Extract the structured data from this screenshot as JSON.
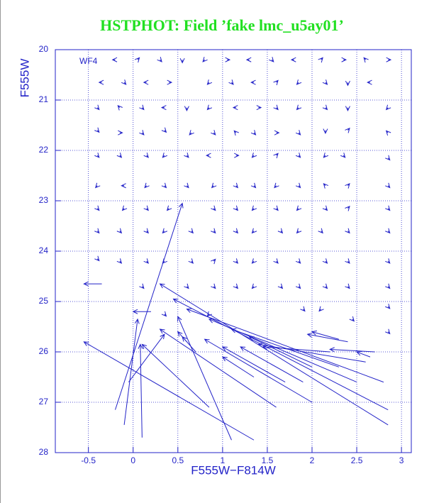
{
  "chart_data": {
    "type": "quiver",
    "title": "HSTPHOT: Field ’fake lmc_u5ay01’",
    "annotation": "WF4",
    "x_label": "F555W−F814W",
    "y_label": "F555W",
    "color": "#2323c8",
    "grid": true,
    "xlim": [
      -0.87,
      3.11
    ],
    "ylim": [
      28,
      20
    ],
    "xticks": [
      -0.5,
      0,
      0.5,
      1,
      1.5,
      2,
      2.5,
      3
    ],
    "yticks": [
      20,
      21,
      22,
      23,
      24,
      25,
      26,
      27,
      28
    ],
    "vectors": [
      [
        -0.2,
        20.2,
        -0.03,
        0
      ],
      [
        0.05,
        20.2,
        0.02,
        -0.04
      ],
      [
        0.3,
        20.2,
        0.02,
        0.04
      ],
      [
        0.55,
        20.2,
        0,
        0.06
      ],
      [
        0.8,
        20.2,
        -0.02,
        0.04
      ],
      [
        1.05,
        20.2,
        0.03,
        0
      ],
      [
        1.3,
        20.2,
        -0.03,
        0
      ],
      [
        1.55,
        20.2,
        0.02,
        0.04
      ],
      [
        1.8,
        20.2,
        -0.03,
        0
      ],
      [
        2.1,
        20.2,
        0.02,
        -0.04
      ],
      [
        2.35,
        20.2,
        0.03,
        0
      ],
      [
        2.6,
        20.2,
        -0.02,
        -0.04
      ],
      [
        2.85,
        20.2,
        0.03,
        0
      ],
      [
        -0.35,
        20.65,
        -0.03,
        0
      ],
      [
        -0.1,
        20.65,
        0.02,
        0.04
      ],
      [
        0.15,
        20.65,
        -0.03,
        0
      ],
      [
        0.4,
        20.65,
        0.03,
        0
      ],
      [
        0.85,
        20.65,
        -0.02,
        0.04
      ],
      [
        1.1,
        20.65,
        0.02,
        0.04
      ],
      [
        1.35,
        20.65,
        -0.03,
        0
      ],
      [
        1.6,
        20.65,
        0.02,
        -0.04
      ],
      [
        1.85,
        20.65,
        -0.02,
        0.04
      ],
      [
        2.15,
        20.65,
        0.02,
        0.04
      ],
      [
        2.4,
        20.65,
        0,
        0.06
      ],
      [
        2.65,
        20.65,
        -0.03,
        0
      ],
      [
        -0.4,
        21.15,
        0.02,
        0.04
      ],
      [
        -0.15,
        21.15,
        -0.02,
        -0.04
      ],
      [
        0.1,
        21.15,
        0.02,
        0.04
      ],
      [
        0.35,
        21.15,
        -0.03,
        0
      ],
      [
        0.6,
        21.15,
        0,
        0.06
      ],
      [
        0.85,
        21.15,
        -0.02,
        0.04
      ],
      [
        1.15,
        21.15,
        -0.03,
        0
      ],
      [
        1.4,
        21.15,
        0.03,
        0
      ],
      [
        1.6,
        21.15,
        0.02,
        0.04
      ],
      [
        1.85,
        21.15,
        -0.02,
        0.04
      ],
      [
        2.15,
        21.15,
        0.02,
        0.04
      ],
      [
        2.4,
        21.15,
        0,
        0.06
      ],
      [
        2.85,
        21.15,
        -0.02,
        0.04
      ],
      [
        -0.4,
        21.6,
        0.02,
        0.04
      ],
      [
        -0.15,
        21.65,
        0.03,
        0
      ],
      [
        0.1,
        21.65,
        0.02,
        0.04
      ],
      [
        0.35,
        21.6,
        0.02,
        0.04
      ],
      [
        0.65,
        21.65,
        -0.02,
        0.04
      ],
      [
        0.9,
        21.65,
        0.02,
        0.04
      ],
      [
        1.15,
        21.65,
        -0.02,
        -0.04
      ],
      [
        1.35,
        21.65,
        0.02,
        0.04
      ],
      [
        1.6,
        21.65,
        0.03,
        0
      ],
      [
        1.85,
        21.65,
        0.02,
        0.04
      ],
      [
        2.15,
        21.6,
        0,
        0.06
      ],
      [
        2.4,
        21.6,
        0.02,
        -0.04
      ],
      [
        2.85,
        21.65,
        -0.02,
        -0.04
      ],
      [
        -0.4,
        22.1,
        0.02,
        0.04
      ],
      [
        -0.15,
        22.1,
        0.02,
        0.04
      ],
      [
        0.15,
        22.1,
        0.02,
        0.04
      ],
      [
        0.35,
        22.1,
        -0.02,
        0.04
      ],
      [
        0.6,
        22.1,
        0.02,
        0.04
      ],
      [
        0.85,
        22.1,
        -0.03,
        0
      ],
      [
        1.15,
        22.1,
        0.03,
        0
      ],
      [
        1.35,
        22.1,
        -0.02,
        0.04
      ],
      [
        1.6,
        22.1,
        0.02,
        -0.04
      ],
      [
        1.85,
        22.1,
        0.02,
        0.04
      ],
      [
        2.15,
        22.1,
        -0.02,
        0.04
      ],
      [
        2.35,
        22.1,
        0.02,
        0.04
      ],
      [
        2.85,
        22.15,
        0.02,
        0.04
      ],
      [
        -0.4,
        22.7,
        -0.02,
        0.04
      ],
      [
        -0.1,
        22.7,
        -0.03,
        0
      ],
      [
        0.15,
        22.7,
        -0.02,
        0.04
      ],
      [
        0.35,
        22.7,
        0.02,
        0.04
      ],
      [
        0.6,
        22.7,
        0.02,
        0.04
      ],
      [
        0.9,
        22.7,
        -0.02,
        0.04
      ],
      [
        1.15,
        22.7,
        0.02,
        0.04
      ],
      [
        1.35,
        22.7,
        0.02,
        0.04
      ],
      [
        1.6,
        22.7,
        -0.02,
        0.04
      ],
      [
        1.85,
        22.7,
        0.02,
        0.04
      ],
      [
        2.15,
        22.7,
        -0.02,
        -0.04
      ],
      [
        2.4,
        22.7,
        0.02,
        -0.04
      ],
      [
        2.85,
        22.7,
        0.02,
        0.04
      ],
      [
        -0.4,
        23.15,
        0.02,
        0.04
      ],
      [
        -0.1,
        23.15,
        -0.02,
        0.04
      ],
      [
        0.15,
        23.15,
        0.02,
        0.04
      ],
      [
        0.4,
        23.15,
        -0.02,
        0.04
      ],
      [
        0.9,
        23.15,
        0.02,
        0.04
      ],
      [
        1.15,
        23.15,
        0.02,
        0.04
      ],
      [
        1.35,
        23.15,
        -0.02,
        0.04
      ],
      [
        1.6,
        23.15,
        0.02,
        0.04
      ],
      [
        1.85,
        23.15,
        -0.02,
        0.04
      ],
      [
        2.15,
        23.15,
        0.02,
        0.04
      ],
      [
        2.4,
        23.15,
        0.02,
        -0.04
      ],
      [
        2.85,
        23.15,
        0.02,
        0.04
      ],
      [
        -0.4,
        23.6,
        0.02,
        0.04
      ],
      [
        -0.15,
        23.6,
        0.02,
        0.04
      ],
      [
        0.15,
        23.6,
        0.02,
        0.04
      ],
      [
        0.35,
        23.6,
        -0.02,
        0.04
      ],
      [
        0.65,
        23.6,
        0.02,
        0.04
      ],
      [
        0.9,
        23.6,
        0.02,
        0.04
      ],
      [
        1.15,
        23.6,
        0.02,
        0.04
      ],
      [
        1.35,
        23.6,
        -0.02,
        0.04
      ],
      [
        1.65,
        23.6,
        0.02,
        0.04
      ],
      [
        1.85,
        23.6,
        -0.02,
        0.04
      ],
      [
        2.1,
        23.6,
        0.02,
        0.04
      ],
      [
        2.4,
        23.6,
        0.02,
        0.04
      ],
      [
        2.85,
        23.6,
        0.02,
        0.04
      ],
      [
        -0.4,
        24.15,
        0.02,
        0.04
      ],
      [
        -0.15,
        24.2,
        0.02,
        0.04
      ],
      [
        0.15,
        24.2,
        0.02,
        0.04
      ],
      [
        0.35,
        24.2,
        -0.02,
        0.04
      ],
      [
        0.65,
        24.2,
        0.02,
        0.04
      ],
      [
        0.9,
        24.2,
        0.02,
        -0.04
      ],
      [
        1.15,
        24.2,
        0.02,
        0.04
      ],
      [
        1.35,
        24.2,
        -0.02,
        0.04
      ],
      [
        1.6,
        24.2,
        0.02,
        0.04
      ],
      [
        1.85,
        24.2,
        0.02,
        0.04
      ],
      [
        2.15,
        24.2,
        0.02,
        0.04
      ],
      [
        2.4,
        24.2,
        0.02,
        0.04
      ],
      [
        2.85,
        24.2,
        0.02,
        0.04
      ],
      [
        0.1,
        24.7,
        0.02,
        0.04
      ],
      [
        0.6,
        24.7,
        0.02,
        0.04
      ],
      [
        0.9,
        24.7,
        0.02,
        0.04
      ],
      [
        1.15,
        24.7,
        0.02,
        0.04
      ],
      [
        1.35,
        24.7,
        -0.02,
        0.04
      ],
      [
        1.65,
        24.7,
        0.02,
        0.04
      ],
      [
        1.85,
        24.7,
        0.02,
        0.04
      ],
      [
        2.15,
        24.7,
        0.02,
        0.04
      ],
      [
        2.4,
        24.7,
        0.02,
        0.04
      ],
      [
        2.85,
        24.7,
        0.02,
        0.04
      ],
      [
        1.9,
        25.15,
        0.02,
        0.04
      ],
      [
        2.1,
        25.15,
        -0.02,
        0.04
      ],
      [
        2.85,
        25.1,
        0.02,
        0.04
      ],
      [
        0.35,
        25.25,
        0.02,
        0.04
      ],
      [
        0.85,
        25.25,
        -0.02,
        0.04
      ],
      [
        2.45,
        25.35,
        0.02,
        0.04
      ],
      [
        2.85,
        25.6,
        0.02,
        0.04
      ],
      [
        -0.2,
        27.15,
        0.75,
        -4.1
      ],
      [
        -0.1,
        27.45,
        0.15,
        -2.1
      ],
      [
        0.1,
        27.7,
        -0.02,
        -1.85
      ],
      [
        1.35,
        27.75,
        -1.9,
        -1.95
      ],
      [
        1.1,
        27.75,
        -0.6,
        -2.45
      ],
      [
        0.85,
        27.1,
        -0.75,
        -1.25
      ],
      [
        1.6,
        27.1,
        -1.3,
        -1.55
      ],
      [
        -0.05,
        26.6,
        0.4,
        -0.95
      ],
      [
        0.2,
        25.2,
        -0.2,
        0
      ],
      [
        -0.35,
        24.65,
        -0.2,
        0
      ],
      [
        2.85,
        27.45,
        -2.55,
        -2.8
      ],
      [
        2.85,
        27.15,
        -2.4,
        -2.2
      ],
      [
        2.8,
        26.6,
        -2.2,
        -1.45
      ],
      [
        2.5,
        26.6,
        -1.65,
        -1.25
      ],
      [
        2.3,
        26.3,
        -1.2,
        -0.75
      ],
      [
        2.0,
        27.0,
        -1.2,
        -1.25
      ],
      [
        1.9,
        26.6,
        -0.7,
        -0.7
      ],
      [
        1.7,
        26.6,
        -0.7,
        -0.7
      ],
      [
        2.0,
        26.3,
        -0.7,
        -0.6
      ],
      [
        1.35,
        26.5,
        -0.35,
        -0.4
      ],
      [
        2.6,
        26.2,
        -1.2,
        -0.35
      ],
      [
        2.2,
        26.0,
        -0.75,
        -0.1
      ],
      [
        2.4,
        25.8,
        -0.45,
        -0.15
      ],
      [
        2.7,
        26.0,
        -0.5,
        -0.05
      ],
      [
        2.3,
        25.75,
        -0.3,
        -0.15
      ],
      [
        2.65,
        26.1,
        -0.15,
        -0.1
      ],
      [
        0.7,
        26.0,
        -0.15,
        -0.3
      ],
      [
        0.6,
        25.8,
        -0.1,
        -0.2
      ]
    ]
  }
}
